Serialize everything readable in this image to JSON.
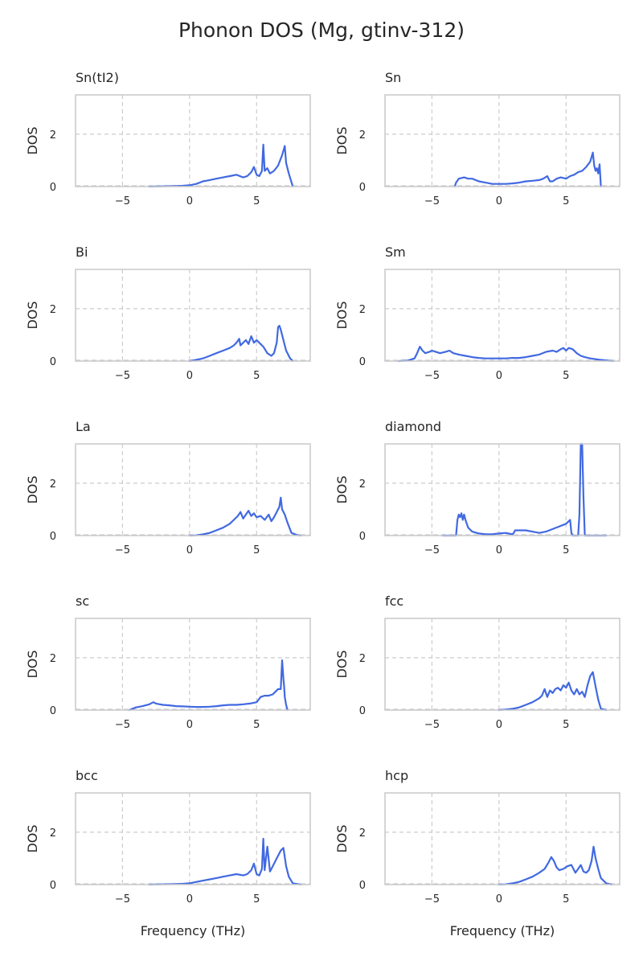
{
  "title": "Phonon DOS (Mg, gtinv-312)",
  "colors": {
    "line": "#4169e1",
    "grid": "#cccccc",
    "text": "#262626"
  },
  "chart_data": [
    {
      "type": "line",
      "title": "Sn(tI2)",
      "xlabel": "",
      "ylabel": "DOS",
      "xlim": [
        -8.5,
        9
      ],
      "ylim": [
        0,
        3.5
      ],
      "xticks": [
        -5,
        0,
        5
      ],
      "yticks": [
        0,
        2
      ],
      "grid": true,
      "series": [
        {
          "x": [
            -3,
            -2,
            -1,
            -0.5,
            0,
            0.5,
            1,
            1.5,
            2,
            2.5,
            3,
            3.5,
            4,
            4.3,
            4.6,
            4.8,
            5,
            5.2,
            5.4,
            5.5,
            5.6,
            5.8,
            6,
            6.3,
            6.6,
            6.9,
            7.1,
            7.2,
            7.4,
            7.7
          ],
          "y": [
            0,
            0.01,
            0.02,
            0.03,
            0.05,
            0.1,
            0.2,
            0.25,
            0.3,
            0.35,
            0.4,
            0.45,
            0.35,
            0.4,
            0.55,
            0.75,
            0.45,
            0.4,
            0.6,
            1.6,
            0.6,
            0.7,
            0.5,
            0.6,
            0.8,
            1.2,
            1.55,
            0.9,
            0.5,
            0
          ]
        }
      ]
    },
    {
      "type": "line",
      "title": "Sn",
      "xlabel": "",
      "ylabel": "DOS",
      "xlim": [
        -8.5,
        9
      ],
      "ylim": [
        0,
        3.5
      ],
      "xticks": [
        -5,
        0,
        5
      ],
      "yticks": [
        0,
        2
      ],
      "grid": true,
      "series": [
        {
          "x": [
            -3.3,
            -3.2,
            -3,
            -2.6,
            -2.3,
            -2,
            -1.5,
            -1,
            -0.5,
            0,
            0.5,
            1,
            1.5,
            2,
            2.5,
            3,
            3.3,
            3.6,
            3.8,
            4,
            4.3,
            4.6,
            5,
            5.3,
            5.6,
            5.9,
            6.2,
            6.5,
            6.8,
            7,
            7.1,
            7.2,
            7.3,
            7.4,
            7.5,
            7.6
          ],
          "y": [
            0,
            0.15,
            0.3,
            0.35,
            0.3,
            0.3,
            0.2,
            0.15,
            0.1,
            0.1,
            0.1,
            0.12,
            0.15,
            0.2,
            0.22,
            0.25,
            0.3,
            0.4,
            0.2,
            0.2,
            0.3,
            0.35,
            0.3,
            0.4,
            0.45,
            0.55,
            0.6,
            0.75,
            0.95,
            1.3,
            0.8,
            0.6,
            0.7,
            0.5,
            0.85,
            0
          ]
        }
      ]
    },
    {
      "type": "line",
      "title": "Bi",
      "xlabel": "",
      "ylabel": "DOS",
      "xlim": [
        -8.5,
        9
      ],
      "ylim": [
        0,
        3.5
      ],
      "xticks": [
        -5,
        0,
        5
      ],
      "yticks": [
        0,
        2
      ],
      "grid": true,
      "series": [
        {
          "x": [
            0,
            0.5,
            1,
            1.5,
            2,
            2.5,
            3,
            3.3,
            3.5,
            3.7,
            3.8,
            4,
            4.2,
            4.4,
            4.6,
            4.8,
            5,
            5.2,
            5.5,
            5.8,
            6.1,
            6.3,
            6.5,
            6.6,
            6.7,
            6.8,
            7,
            7.2,
            7.5,
            7.7
          ],
          "y": [
            0,
            0.05,
            0.1,
            0.2,
            0.3,
            0.4,
            0.5,
            0.6,
            0.7,
            0.85,
            0.6,
            0.7,
            0.8,
            0.65,
            0.95,
            0.7,
            0.8,
            0.7,
            0.55,
            0.3,
            0.2,
            0.3,
            0.7,
            1.3,
            1.35,
            1.2,
            0.8,
            0.4,
            0.1,
            0
          ]
        }
      ]
    },
    {
      "type": "line",
      "title": "Sm",
      "xlabel": "",
      "ylabel": "DOS",
      "xlim": [
        -8.5,
        9
      ],
      "ylim": [
        0,
        3.5
      ],
      "xticks": [
        -5,
        0,
        5
      ],
      "yticks": [
        0,
        2
      ],
      "grid": true,
      "series": [
        {
          "x": [
            -7.5,
            -6.8,
            -6.3,
            -6.1,
            -5.9,
            -5.7,
            -5.5,
            -5.2,
            -5,
            -4.7,
            -4.4,
            -4,
            -3.7,
            -3.4,
            -3,
            -2.5,
            -2,
            -1.5,
            -1,
            -0.5,
            0,
            0.5,
            1,
            1.5,
            2,
            2.5,
            3,
            3.5,
            4,
            4.3,
            4.6,
            4.8,
            5,
            5.2,
            5.5,
            5.8,
            6.1,
            6.4,
            6.8,
            7.5,
            8.5
          ],
          "y": [
            0,
            0.02,
            0.1,
            0.3,
            0.55,
            0.4,
            0.3,
            0.35,
            0.4,
            0.35,
            0.3,
            0.35,
            0.4,
            0.3,
            0.25,
            0.2,
            0.15,
            0.12,
            0.1,
            0.1,
            0.1,
            0.1,
            0.12,
            0.12,
            0.15,
            0.2,
            0.25,
            0.35,
            0.4,
            0.35,
            0.45,
            0.5,
            0.4,
            0.5,
            0.45,
            0.3,
            0.2,
            0.15,
            0.1,
            0.05,
            0
          ]
        }
      ]
    },
    {
      "type": "line",
      "title": "La",
      "xlabel": "",
      "ylabel": "DOS",
      "xlim": [
        -8.5,
        9
      ],
      "ylim": [
        0,
        3.5
      ],
      "xticks": [
        -5,
        0,
        5
      ],
      "yticks": [
        0,
        2
      ],
      "grid": true,
      "series": [
        {
          "x": [
            0,
            0.5,
            1,
            1.5,
            2,
            2.5,
            3,
            3.3,
            3.6,
            3.8,
            4,
            4.2,
            4.4,
            4.6,
            4.8,
            5,
            5.3,
            5.6,
            5.9,
            6.1,
            6.3,
            6.5,
            6.7,
            6.8,
            6.9,
            7.1,
            7.3,
            7.6,
            8,
            8.3
          ],
          "y": [
            0,
            0.01,
            0.05,
            0.1,
            0.2,
            0.3,
            0.45,
            0.6,
            0.75,
            0.9,
            0.65,
            0.8,
            0.95,
            0.75,
            0.85,
            0.7,
            0.75,
            0.6,
            0.8,
            0.55,
            0.7,
            0.9,
            1.1,
            1.45,
            1.0,
            0.8,
            0.5,
            0.1,
            0.02,
            0
          ]
        }
      ]
    },
    {
      "type": "line",
      "title": "diamond",
      "xlabel": "",
      "ylabel": "DOS",
      "xlim": [
        -8.5,
        9
      ],
      "ylim": [
        0,
        3.5
      ],
      "xticks": [
        -5,
        0,
        5
      ],
      "yticks": [
        0,
        2
      ],
      "grid": true,
      "series": [
        {
          "x": [
            -4.2,
            -3.2,
            -3.1,
            -3,
            -2.9,
            -2.8,
            -2.7,
            -2.6,
            -2.5,
            -2.3,
            -2,
            -1.5,
            -1,
            -0.5,
            0,
            0.5,
            1,
            1.1,
            1.2,
            1.5,
            2,
            2.5,
            3,
            3.5,
            4,
            4.5,
            5,
            5.3,
            5.4,
            5.5,
            5.6,
            5.9,
            6,
            6.1,
            6.2,
            6.3,
            6.4,
            6.5,
            8
          ],
          "y": [
            0,
            0,
            0.6,
            0.8,
            0.7,
            0.85,
            0.6,
            0.8,
            0.6,
            0.3,
            0.15,
            0.08,
            0.05,
            0.05,
            0.08,
            0.1,
            0.05,
            0.1,
            0.2,
            0.2,
            0.2,
            0.15,
            0.1,
            0.15,
            0.25,
            0.35,
            0.45,
            0.6,
            0.1,
            0.0,
            0.0,
            0.0,
            0.8,
            3.5,
            3.5,
            1.5,
            0.0,
            0.0,
            0
          ]
        }
      ]
    },
    {
      "type": "line",
      "title": "sc",
      "xlabel": "",
      "ylabel": "DOS",
      "xlim": [
        -8.5,
        9
      ],
      "ylim": [
        0,
        3.5
      ],
      "xticks": [
        -5,
        0,
        5
      ],
      "yticks": [
        0,
        2
      ],
      "grid": true,
      "series": [
        {
          "x": [
            -4.5,
            -4,
            -3.5,
            -3,
            -2.7,
            -2.5,
            -2,
            -1.5,
            -1,
            -0.5,
            0,
            0.5,
            1,
            1.5,
            2,
            2.5,
            3,
            3.5,
            4,
            4.5,
            5,
            5.3,
            5.6,
            5.9,
            6.2,
            6.4,
            6.6,
            6.8,
            6.9,
            7,
            7.05,
            7.1,
            7.2,
            7.3
          ],
          "y": [
            0,
            0.1,
            0.15,
            0.22,
            0.3,
            0.25,
            0.2,
            0.18,
            0.15,
            0.14,
            0.13,
            0.12,
            0.12,
            0.13,
            0.15,
            0.18,
            0.2,
            0.2,
            0.22,
            0.25,
            0.3,
            0.5,
            0.55,
            0.55,
            0.6,
            0.7,
            0.8,
            0.8,
            1.9,
            1.2,
            0.9,
            0.5,
            0.2,
            0
          ]
        }
      ]
    },
    {
      "type": "line",
      "title": "fcc",
      "xlabel": "",
      "ylabel": "DOS",
      "xlim": [
        -8.5,
        9
      ],
      "ylim": [
        0,
        3.5
      ],
      "xticks": [
        -5,
        0,
        5
      ],
      "yticks": [
        0,
        2
      ],
      "grid": true,
      "series": [
        {
          "x": [
            0,
            0.5,
            1,
            1.5,
            2,
            2.5,
            3,
            3.2,
            3.4,
            3.6,
            3.8,
            4,
            4.2,
            4.4,
            4.6,
            4.8,
            5,
            5.2,
            5.4,
            5.6,
            5.8,
            6,
            6.2,
            6.4,
            6.6,
            6.8,
            7,
            7.2,
            7.4,
            7.6,
            8
          ],
          "y": [
            0,
            0.02,
            0.05,
            0.1,
            0.2,
            0.3,
            0.45,
            0.55,
            0.8,
            0.5,
            0.75,
            0.65,
            0.8,
            0.85,
            0.75,
            0.95,
            0.85,
            1.05,
            0.75,
            0.6,
            0.8,
            0.6,
            0.7,
            0.5,
            0.95,
            1.3,
            1.45,
            0.9,
            0.4,
            0.05,
            0
          ]
        }
      ]
    },
    {
      "type": "line",
      "title": "bcc",
      "xlabel": "",
      "ylabel": "DOS",
      "xlim": [
        -8.5,
        9
      ],
      "ylim": [
        0,
        3.5
      ],
      "xticks": [
        -5,
        0,
        5
      ],
      "yticks": [
        0,
        2
      ],
      "grid": true,
      "series": [
        {
          "x": [
            -3,
            -2,
            -1,
            -0.5,
            0,
            0.5,
            1,
            1.5,
            2,
            2.5,
            3,
            3.5,
            4,
            4.3,
            4.6,
            4.8,
            5,
            5.2,
            5.4,
            5.5,
            5.6,
            5.8,
            6,
            6.2,
            6.5,
            6.8,
            7,
            7.2,
            7.4,
            7.7,
            8.3
          ],
          "y": [
            0,
            0.01,
            0.02,
            0.03,
            0.05,
            0.1,
            0.15,
            0.2,
            0.25,
            0.3,
            0.35,
            0.4,
            0.35,
            0.4,
            0.55,
            0.8,
            0.4,
            0.35,
            0.6,
            1.75,
            0.55,
            1.45,
            0.5,
            0.7,
            1.0,
            1.3,
            1.4,
            0.7,
            0.3,
            0.05,
            0
          ]
        }
      ]
    },
    {
      "type": "line",
      "title": "hcp",
      "xlabel": "",
      "ylabel": "DOS",
      "xlim": [
        -8.5,
        9
      ],
      "ylim": [
        0,
        3.5
      ],
      "xticks": [
        -5,
        0,
        5
      ],
      "yticks": [
        0,
        2
      ],
      "grid": true,
      "series": [
        {
          "x": [
            0,
            0.5,
            1,
            1.5,
            2,
            2.5,
            3,
            3.4,
            3.7,
            3.9,
            4.1,
            4.3,
            4.5,
            4.8,
            5.1,
            5.4,
            5.7,
            5.9,
            6.1,
            6.3,
            6.5,
            6.7,
            6.9,
            7.05,
            7.2,
            7.4,
            7.6,
            8,
            8.4
          ],
          "y": [
            0,
            0.01,
            0.05,
            0.1,
            0.2,
            0.3,
            0.45,
            0.6,
            0.85,
            1.05,
            0.9,
            0.65,
            0.55,
            0.6,
            0.7,
            0.75,
            0.45,
            0.6,
            0.75,
            0.5,
            0.45,
            0.55,
            0.9,
            1.45,
            1.0,
            0.6,
            0.25,
            0.05,
            0
          ]
        }
      ]
    }
  ],
  "xlabel_bottom": "Frequency (THz)"
}
